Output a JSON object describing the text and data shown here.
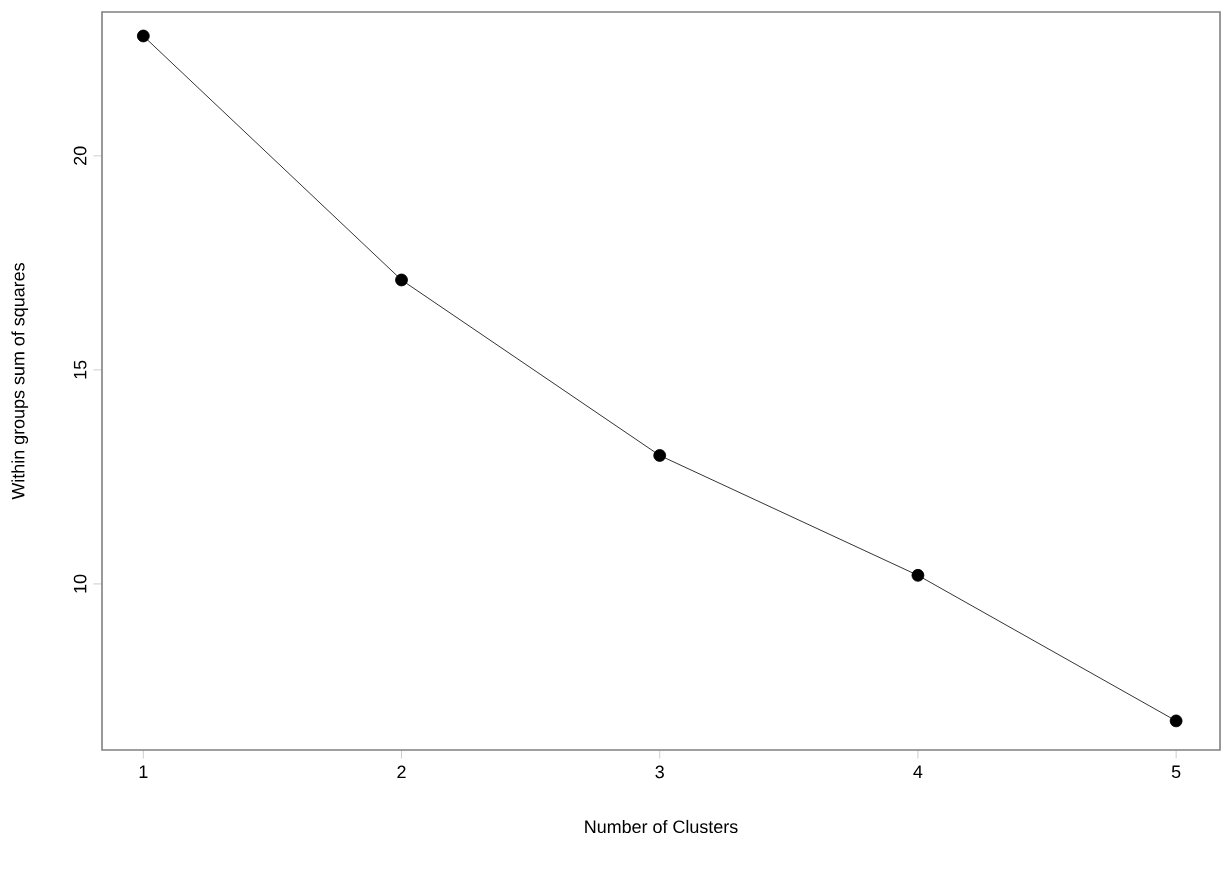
{
  "chart_data": {
    "type": "line",
    "xlabel": "Number of Clusters",
    "ylabel": "Within groups sum of squares",
    "x": [
      1,
      2,
      3,
      4,
      5
    ],
    "series": [
      {
        "color": "#000000",
        "values": [
          22.8,
          17.1,
          13.0,
          10.2,
          6.8
        ]
      }
    ],
    "xlim": [
      0.84,
      5.17
    ],
    "ylim": [
      6.12,
      23.36
    ],
    "xticks": [
      1,
      2,
      3,
      4,
      5
    ],
    "yticks": [
      10,
      15,
      20
    ],
    "marker": "circle",
    "line_style": "solid"
  }
}
